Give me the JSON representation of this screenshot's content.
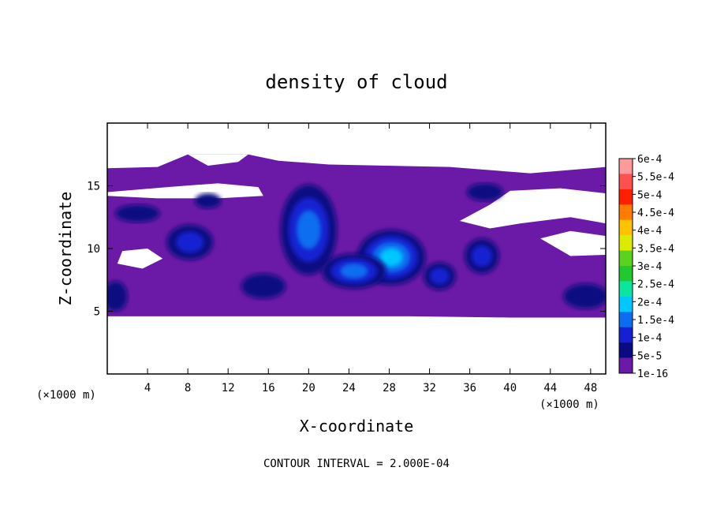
{
  "chart_data": {
    "type": "heatmap",
    "title": "density of cloud",
    "xlabel": "X-coordinate",
    "ylabel": "Z-coordinate",
    "x_unit": "(×1000 m)",
    "y_unit": "(×1000 m)",
    "xlim": [
      0,
      49.5
    ],
    "ylim": [
      0,
      20
    ],
    "x_ticks": [
      4,
      8,
      12,
      16,
      20,
      24,
      28,
      32,
      36,
      40,
      44,
      48
    ],
    "y_ticks": [
      5,
      10,
      15
    ],
    "footer": "CONTOUR INTERVAL = 2.000E-04",
    "colorbar": {
      "labels": [
        "6e-4",
        "5.5e-4",
        "5e-4",
        "4.5e-4",
        "4e-4",
        "3.5e-4",
        "3e-4",
        "2.5e-4",
        "2e-4",
        "1.5e-4",
        "1e-4",
        "5e-5",
        "1e-16"
      ],
      "colors": [
        "#ff9a9a",
        "#ff5050",
        "#ff2000",
        "#ff7c00",
        "#ffc400",
        "#dcec00",
        "#5ad21e",
        "#22c830",
        "#0ae6a0",
        "#00c8ff",
        "#0a6ef0",
        "#1420d2",
        "#0a0a82",
        "#6a1aa6"
      ]
    },
    "field_blobs": [
      {
        "x": 20.0,
        "z": 11.5,
        "rx": 2.8,
        "rz": 3.6,
        "value": 0.00014
      },
      {
        "x": 28.2,
        "z": 9.3,
        "rx": 3.4,
        "rz": 2.2,
        "value": 0.00018
      },
      {
        "x": 24.5,
        "z": 8.2,
        "rx": 3.2,
        "rz": 1.4,
        "value": 0.00013
      },
      {
        "x": 8.2,
        "z": 10.5,
        "rx": 2.3,
        "rz": 1.4,
        "value": 0.00011
      },
      {
        "x": 37.2,
        "z": 9.4,
        "rx": 1.7,
        "rz": 1.4,
        "value": 0.00011
      },
      {
        "x": 33.0,
        "z": 7.8,
        "rx": 1.6,
        "rz": 1.1,
        "value": 0.0001
      },
      {
        "x": 15.5,
        "z": 7.0,
        "rx": 2.2,
        "rz": 1.0,
        "value": 6e-05
      },
      {
        "x": 47.5,
        "z": 6.2,
        "rx": 2.2,
        "rz": 1.0,
        "value": 6e-05
      },
      {
        "x": 0.8,
        "z": 6.2,
        "rx": 1.2,
        "rz": 1.2,
        "value": 6e-05
      },
      {
        "x": 3.0,
        "z": 12.8,
        "rx": 2.2,
        "rz": 0.7,
        "value": 6e-05
      },
      {
        "x": 10.0,
        "z": 13.8,
        "rx": 1.3,
        "rz": 0.6,
        "value": 6e-05
      },
      {
        "x": 37.5,
        "z": 14.5,
        "rx": 1.8,
        "rz": 0.7,
        "value": 5e-05
      }
    ]
  }
}
